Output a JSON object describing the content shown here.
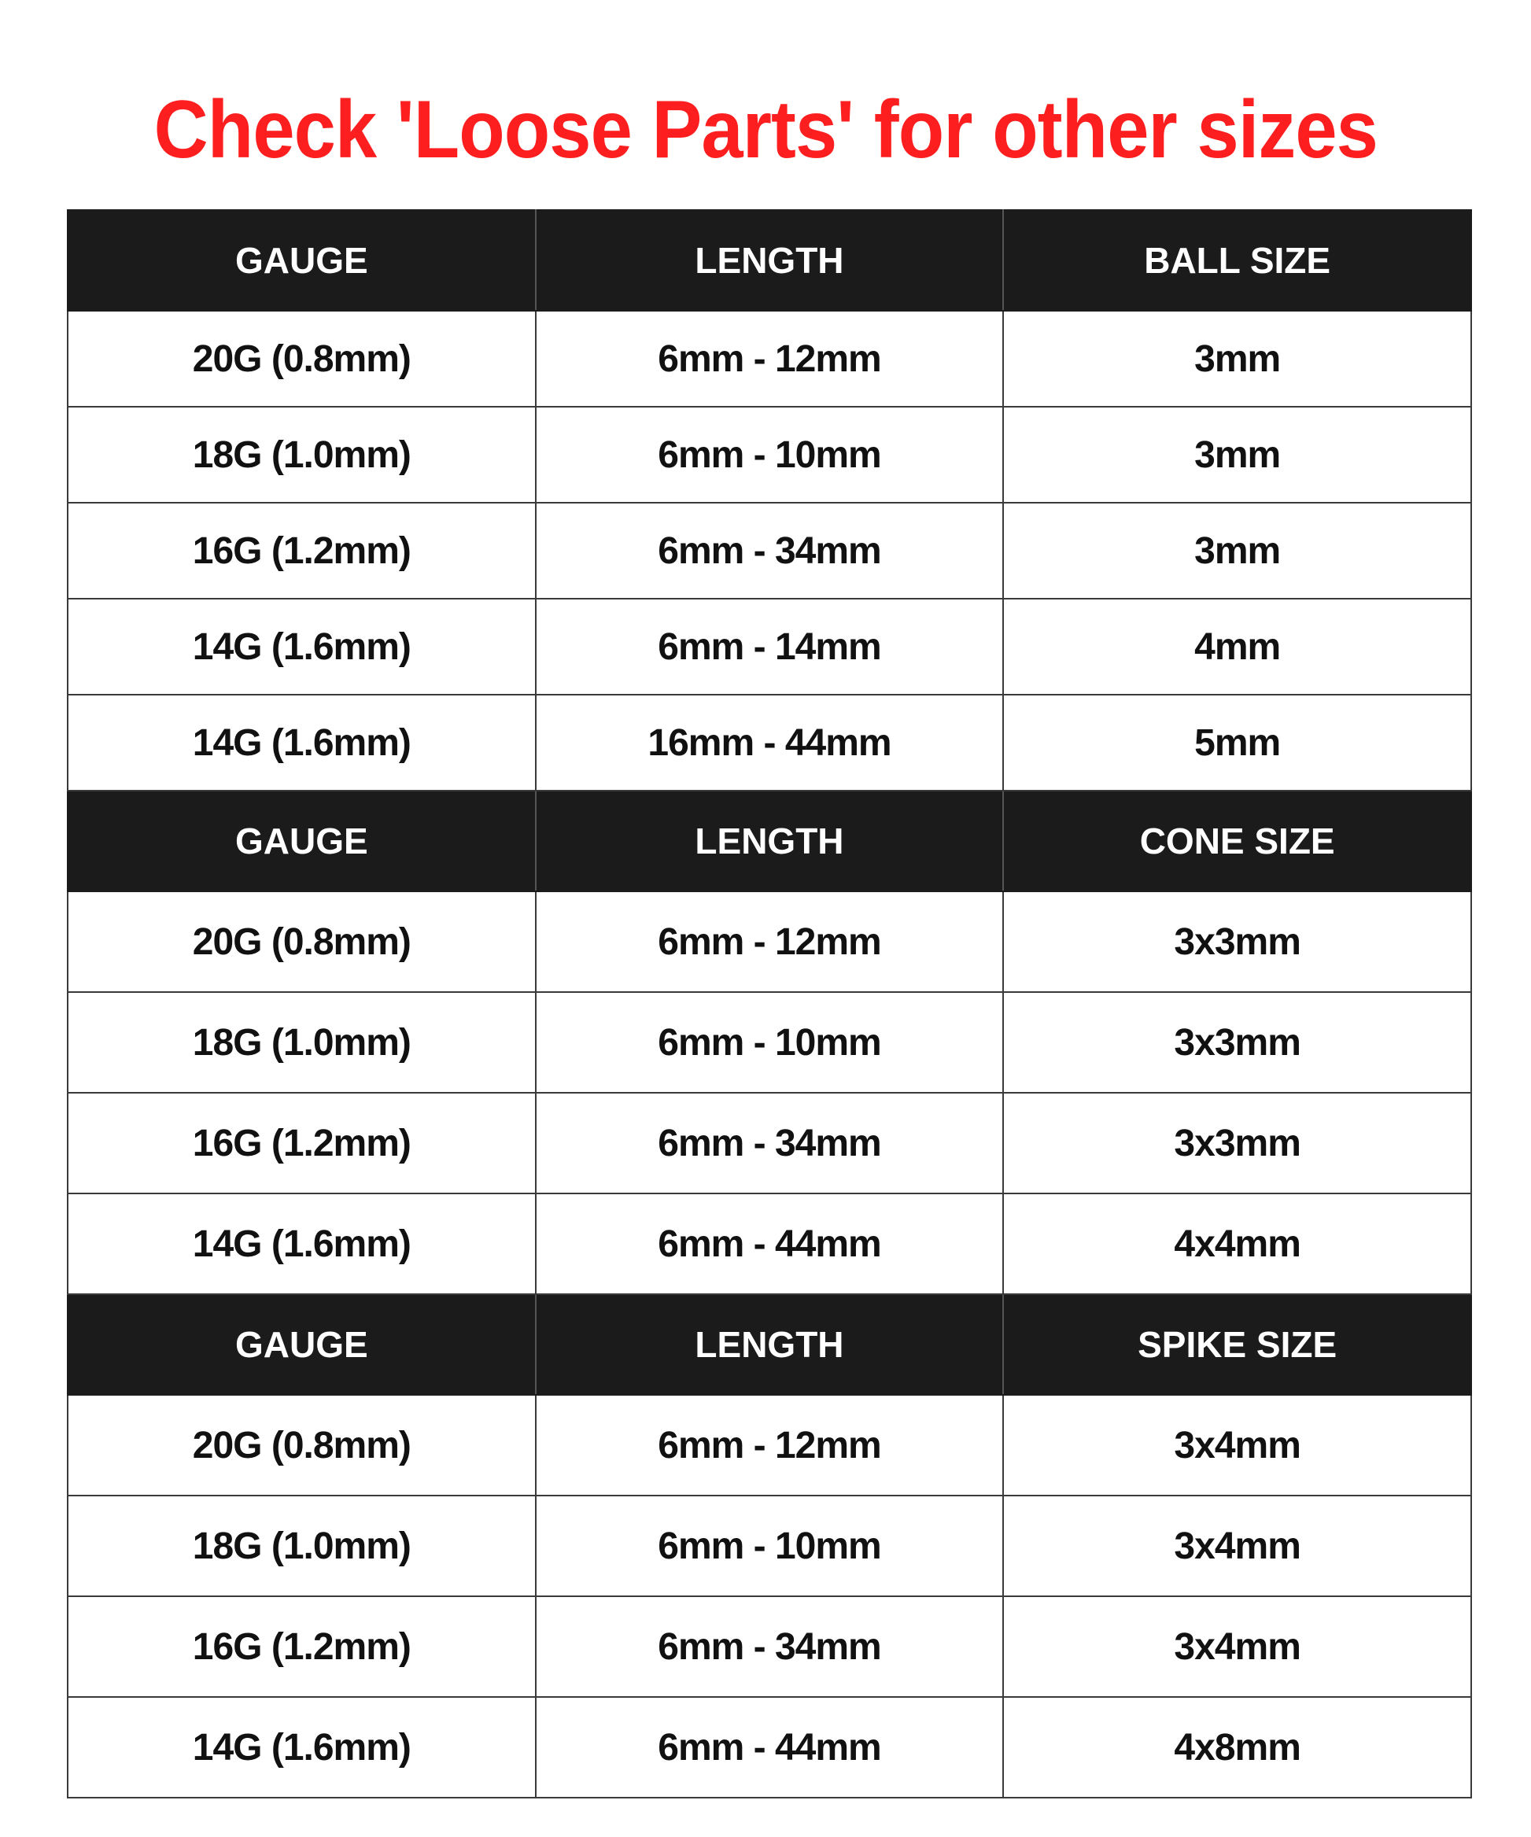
{
  "title": "Check 'Loose Parts' for other sizes",
  "colors": {
    "title": "#fd1f1f",
    "header_bg": "#1b1b1b",
    "header_text": "#ffffff"
  },
  "sections": [
    {
      "headers": [
        "GAUGE",
        "LENGTH",
        "BALL SIZE"
      ],
      "rows": [
        [
          "20G (0.8mm)",
          "6mm - 12mm",
          "3mm"
        ],
        [
          "18G (1.0mm)",
          "6mm - 10mm",
          "3mm"
        ],
        [
          "16G (1.2mm)",
          "6mm - 34mm",
          "3mm"
        ],
        [
          "14G (1.6mm)",
          "6mm - 14mm",
          "4mm"
        ],
        [
          "14G (1.6mm)",
          "16mm - 44mm",
          "5mm"
        ]
      ]
    },
    {
      "headers": [
        "GAUGE",
        "LENGTH",
        "CONE SIZE"
      ],
      "rows": [
        [
          "20G (0.8mm)",
          "6mm - 12mm",
          "3x3mm"
        ],
        [
          "18G (1.0mm)",
          "6mm - 10mm",
          "3x3mm"
        ],
        [
          "16G (1.2mm)",
          "6mm - 34mm",
          "3x3mm"
        ],
        [
          "14G (1.6mm)",
          "6mm - 44mm",
          "4x4mm"
        ]
      ]
    },
    {
      "headers": [
        "GAUGE",
        "LENGTH",
        "SPIKE SIZE"
      ],
      "rows": [
        [
          "20G (0.8mm)",
          "6mm - 12mm",
          "3x4mm"
        ],
        [
          "18G (1.0mm)",
          "6mm - 10mm",
          "3x4mm"
        ],
        [
          "16G (1.2mm)",
          "6mm - 34mm",
          "3x4mm"
        ],
        [
          "14G (1.6mm)",
          "6mm - 44mm",
          "4x8mm"
        ]
      ]
    }
  ]
}
